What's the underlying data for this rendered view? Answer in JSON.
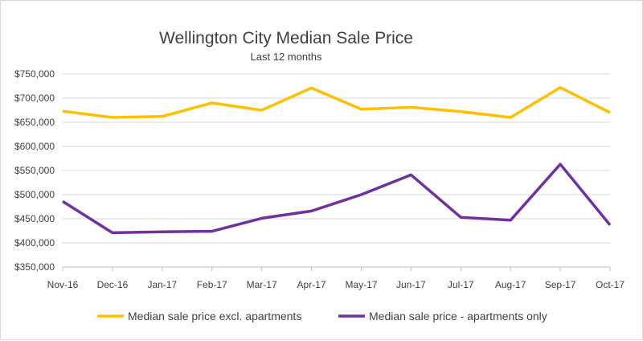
{
  "chart_data": {
    "type": "line",
    "title": "Wellington City Median Sale Price",
    "subtitle": "Last 12 months",
    "categories": [
      "Nov-16",
      "Dec-16",
      "Jan-17",
      "Feb-17",
      "Mar-17",
      "Apr-17",
      "May-17",
      "Jun-17",
      "Jul-17",
      "Aug-17",
      "Sep-17",
      "Oct-17"
    ],
    "ylim": [
      350000,
      750000
    ],
    "yticks": [
      350000,
      400000,
      450000,
      500000,
      550000,
      600000,
      650000,
      700000,
      750000
    ],
    "ytick_labels": [
      "$350,000",
      "$400,000",
      "$450,000",
      "$500,000",
      "$550,000",
      "$600,000",
      "$650,000",
      "$700,000",
      "$750,000"
    ],
    "grid": true,
    "legend_position": "bottom",
    "series": [
      {
        "name": "Median sale price excl. apartments",
        "color": "#FFC000",
        "values": [
          673000,
          660000,
          662000,
          690000,
          675000,
          721000,
          677000,
          681000,
          672000,
          660000,
          722000,
          670000
        ]
      },
      {
        "name": "Median sale price - apartments only",
        "color": "#7030A0",
        "values": [
          486000,
          421000,
          423000,
          424000,
          451000,
          466000,
          500000,
          541000,
          453000,
          447000,
          563000,
          437000
        ]
      }
    ]
  }
}
